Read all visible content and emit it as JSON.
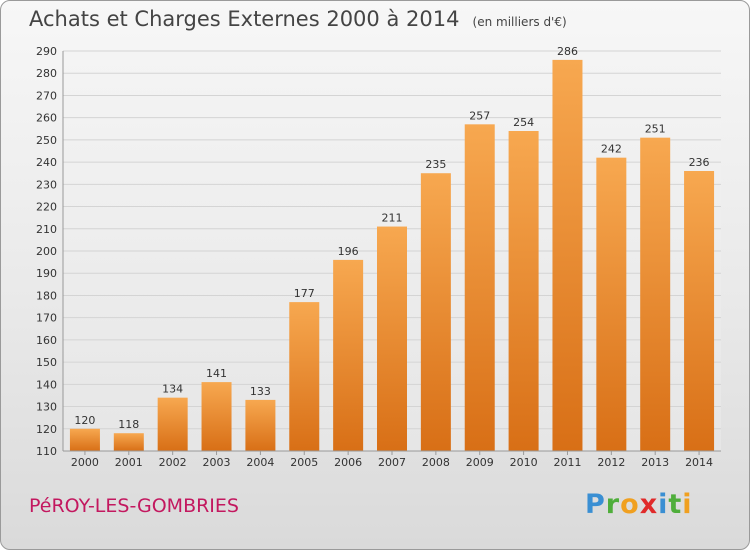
{
  "header": {
    "title": "Achats et Charges Externes 2000 à 2014",
    "unit": "(en milliers d'€)"
  },
  "footer": {
    "commune": "PéROY-LES-GOMBRIES"
  },
  "logo": {
    "letters": [
      "P",
      "r",
      "o",
      "x",
      "i",
      "t",
      "i"
    ],
    "colors": [
      "#3a8fd3",
      "#4fae3b",
      "#f0a020",
      "#e02a2a",
      "#3a8fd3",
      "#4fae3b",
      "#f0a020"
    ]
  },
  "colors": {
    "bar_light": "#f7a850",
    "bar_dark": "#d86f16",
    "grid": "#d4d4d4",
    "axis_text": "#333333"
  },
  "chart_data": {
    "type": "bar",
    "title": "Achats et Charges Externes 2000 à 2014",
    "subtitle": "(en milliers d'€)",
    "xlabel": "",
    "ylabel": "",
    "categories": [
      "2000",
      "2001",
      "2002",
      "2003",
      "2004",
      "2005",
      "2006",
      "2007",
      "2008",
      "2009",
      "2010",
      "2011",
      "2012",
      "2013",
      "2014"
    ],
    "values": [
      120,
      118,
      134,
      141,
      133,
      177,
      196,
      211,
      235,
      257,
      254,
      286,
      242,
      251,
      236
    ],
    "ylim": [
      110,
      290
    ],
    "yticks": [
      110,
      120,
      130,
      140,
      150,
      160,
      170,
      180,
      190,
      200,
      210,
      220,
      230,
      240,
      250,
      260,
      270,
      280,
      290
    ],
    "grid": true,
    "legend": "none"
  }
}
